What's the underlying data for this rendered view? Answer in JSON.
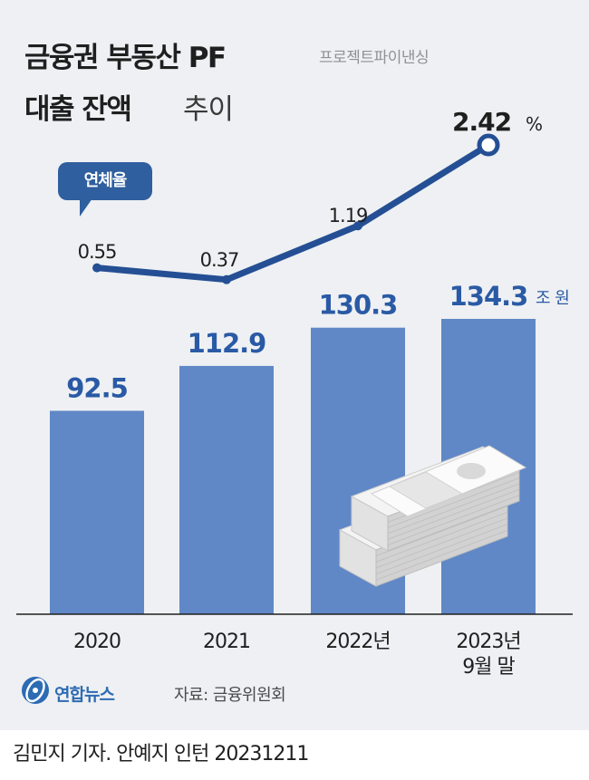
{
  "title": {
    "line1": "금융권 부동산 PF",
    "line1_sub": "프로젝트파이낸싱",
    "line2_bold": "대출 잔액",
    "line2_light": "추이"
  },
  "colors": {
    "background": "#eef0f3",
    "bar": "#6088c6",
    "line": "#254f94",
    "value_text": "#2a5aa5",
    "bubble": "#2f5f9e"
  },
  "chart_data": {
    "type": "bar",
    "categories": [
      "2020",
      "2021",
      "2022년",
      "2023년\n9월 말"
    ],
    "series": [
      {
        "name": "",
        "type": "bar",
        "unit": "조 원",
        "values": [
          92.5,
          112.9,
          130.3,
          134.3
        ]
      },
      {
        "name": "연체율",
        "type": "line",
        "unit": "%",
        "values": [
          0.55,
          0.37,
          1.19,
          2.42
        ]
      }
    ],
    "bar_labels": [
      "92.5",
      "112.9",
      "130.3",
      "134.3"
    ],
    "bar_unit_label": "조 원",
    "line_labels": [
      "0.55",
      "0.37",
      "1.19",
      "2.42"
    ],
    "line_unit_label": "%",
    "legend_bubble": "연체율",
    "grid": false
  },
  "footer": {
    "logo_text": "연합뉴스",
    "source": "자료: 금융위원회",
    "credit": "김민지 기자. 안예지 인턴 20231211"
  }
}
